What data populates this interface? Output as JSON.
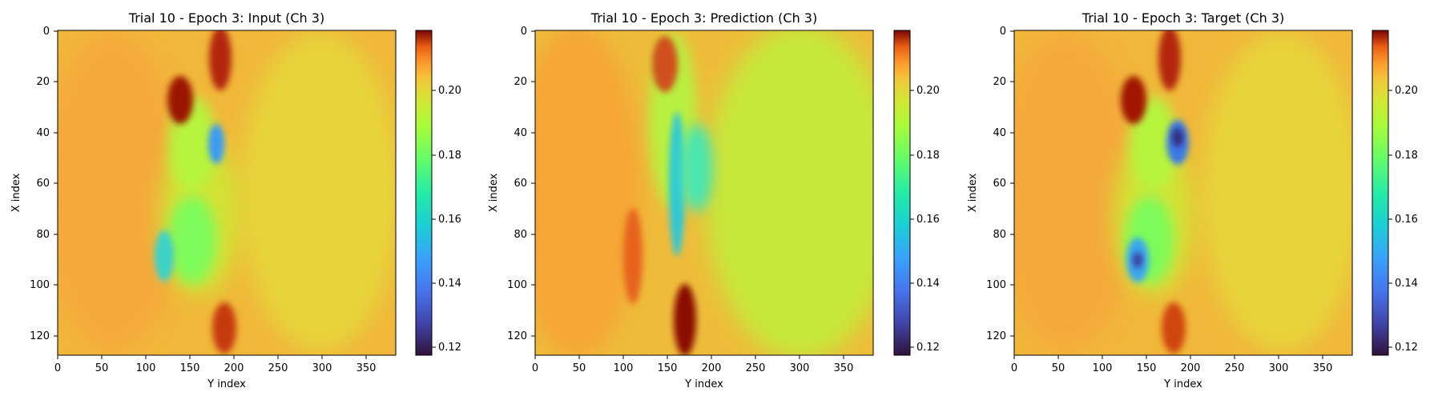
{
  "chart_data": [
    {
      "type": "heatmap",
      "title": "Trial 10 - Epoch 3: Input (Ch 3)",
      "xlabel": "Y index",
      "ylabel": "X index",
      "xlim": [
        0,
        384
      ],
      "ylim": [
        128,
        0
      ],
      "xticks": [
        "0",
        "50",
        "100",
        "150",
        "200",
        "250",
        "300",
        "350"
      ],
      "yticks": [
        "0",
        "20",
        "40",
        "60",
        "80",
        "100",
        "120"
      ],
      "colorbar": {
        "min": 0.117,
        "max": 0.218,
        "ticks": [
          "0.12",
          "0.14",
          "0.16",
          "0.18",
          "0.20"
        ],
        "colormap": "turbo"
      },
      "background_value": 0.185,
      "features": [
        {
          "x": 165,
          "y": 22,
          "value": 0.21,
          "note": "high ridge"
        },
        {
          "x": 135,
          "y": 32,
          "value": 0.215
        },
        {
          "x": 180,
          "y": 42,
          "value": 0.133,
          "note": "low spot"
        },
        {
          "x": 148,
          "y": 90,
          "value": 0.138,
          "note": "low spot"
        },
        {
          "x": 185,
          "y": 118,
          "value": 0.21
        }
      ]
    },
    {
      "type": "heatmap",
      "title": "Trial 10 - Epoch 3: Prediction (Ch 3)",
      "xlabel": "Y index",
      "ylabel": "X index",
      "xlim": [
        0,
        384
      ],
      "ylim": [
        128,
        0
      ],
      "xticks": [
        "0",
        "50",
        "100",
        "150",
        "200",
        "250",
        "300",
        "350"
      ],
      "yticks": [
        "0",
        "20",
        "40",
        "60",
        "80",
        "100",
        "120"
      ],
      "colorbar": {
        "min": 0.117,
        "max": 0.218,
        "ticks": [
          "0.12",
          "0.14",
          "0.16",
          "0.18",
          "0.20"
        ],
        "colormap": "turbo"
      },
      "background_value": 0.18,
      "features": [
        {
          "x": 170,
          "y": 20,
          "value": 0.21,
          "note": "high ridge"
        },
        {
          "x": 155,
          "y": 55,
          "value": 0.15,
          "note": "low band"
        },
        {
          "x": 185,
          "y": 50,
          "value": 0.155
        },
        {
          "x": 160,
          "y": 115,
          "value": 0.215,
          "note": "high ridge"
        }
      ]
    },
    {
      "type": "heatmap",
      "title": "Trial 10 - Epoch 3: Target (Ch 3)",
      "xlabel": "Y index",
      "ylabel": "X index",
      "xlim": [
        0,
        384
      ],
      "ylim": [
        128,
        0
      ],
      "xticks": [
        "0",
        "50",
        "100",
        "150",
        "200",
        "250",
        "300",
        "350"
      ],
      "yticks": [
        "0",
        "20",
        "40",
        "60",
        "80",
        "100",
        "120"
      ],
      "colorbar": {
        "min": 0.117,
        "max": 0.218,
        "ticks": [
          "0.12",
          "0.14",
          "0.16",
          "0.18",
          "0.20"
        ],
        "colormap": "turbo"
      },
      "background_value": 0.185,
      "features": [
        {
          "x": 160,
          "y": 22,
          "value": 0.21,
          "note": "high ridge"
        },
        {
          "x": 135,
          "y": 32,
          "value": 0.213
        },
        {
          "x": 185,
          "y": 42,
          "value": 0.125,
          "note": "low spot"
        },
        {
          "x": 140,
          "y": 88,
          "value": 0.125,
          "note": "low spot"
        },
        {
          "x": 180,
          "y": 118,
          "value": 0.207
        }
      ]
    }
  ]
}
